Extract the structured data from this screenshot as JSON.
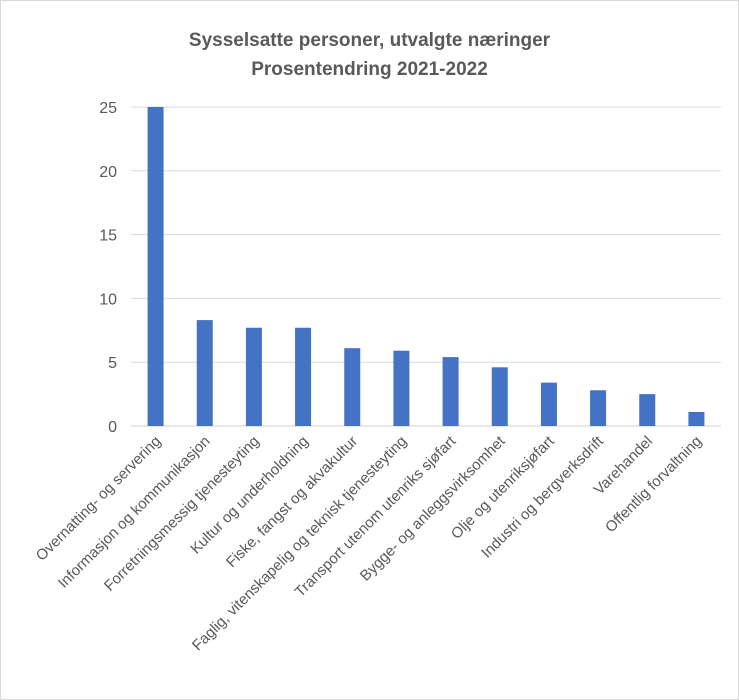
{
  "chart_data": {
    "type": "bar",
    "title": "Sysselsatte personer, utvalgte næringer",
    "subtitle": "Prosentendring 2021-2022",
    "xlabel": "",
    "ylabel": "",
    "ylim": [
      0,
      25
    ],
    "yticks": [
      0,
      5,
      10,
      15,
      20,
      25
    ],
    "grid": true,
    "legend": "none",
    "bar_color": "#4472C4",
    "categories": [
      "Overnatting- og servering",
      "Informasjon og kommunikasjon",
      "Forretningsmessig tjenesteyting",
      "Kultur og underholdning",
      "Fiske, fangst og akvakultur",
      "Faglig, vitenskapelig og teknisk tjenesteyting",
      "Transport utenom utenriks sjøfart",
      "Bygge- og anleggsvirksomhet",
      "Olje og utenriksjøfart",
      "Industri og bergverksdrift",
      "Varehandel",
      "Offentlig forvaltning"
    ],
    "values": [
      25.0,
      8.3,
      7.7,
      7.7,
      6.1,
      5.9,
      5.4,
      4.6,
      3.4,
      2.8,
      2.5,
      1.1
    ]
  }
}
